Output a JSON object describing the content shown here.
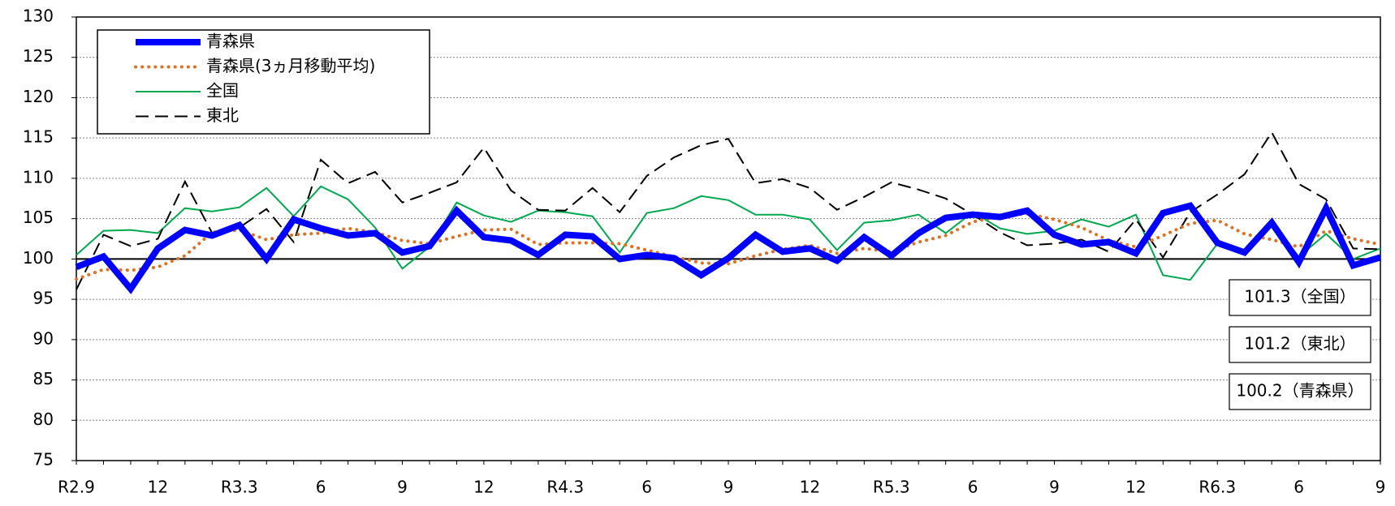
{
  "chart_data": {
    "type": "line",
    "categories": [
      "R2.9",
      null,
      null,
      "12",
      null,
      null,
      "R3.3",
      null,
      null,
      "6",
      null,
      null,
      "9",
      null,
      null,
      "12",
      null,
      null,
      "R4.3",
      null,
      null,
      "6",
      null,
      null,
      "9",
      null,
      null,
      "12",
      null,
      null,
      "R5.3",
      null,
      null,
      "6",
      null,
      null,
      "9",
      null,
      null,
      "12",
      null,
      null,
      "R6.3",
      null,
      null,
      "6",
      null,
      null,
      "9"
    ],
    "series": [
      {
        "name": "青森県",
        "color": "#0000ff",
        "style": "solid",
        "width": 8,
        "values": [
          99,
          100.3,
          96.3,
          101.3,
          103.6,
          102.9,
          104.2,
          100,
          104.9,
          103.8,
          102.9,
          103.2,
          100.8,
          101.6,
          106,
          102.7,
          102.3,
          100.5,
          103,
          102.8,
          100,
          100.5,
          100.1,
          98,
          100.1,
          103,
          100.9,
          101.3,
          99.8,
          102.7,
          100.4,
          103.2,
          105.1,
          105.5,
          105.2,
          106,
          103,
          101.8,
          102.1,
          100.7,
          105.7,
          106.6,
          102,
          100.8,
          104.5,
          99.6,
          106.3,
          99.2,
          100.2
        ]
      },
      {
        "name": "青森県(3ヵ月移動平均)",
        "color": "#e07020",
        "style": "dotted",
        "width": 4,
        "values": [
          97.5,
          98.7,
          98.6,
          99,
          100.4,
          103.3,
          103.6,
          102.4,
          103,
          103.2,
          103.8,
          103.3,
          102.3,
          101.9,
          102.8,
          103.6,
          103.7,
          101.8,
          102,
          102,
          101.9,
          101.1,
          100.3,
          99.5,
          99.4,
          100.4,
          101.2,
          101.7,
          100.7,
          101.3,
          100.9,
          102.1,
          102.9,
          104.6,
          105.3,
          105.6,
          104.9,
          103.9,
          102.3,
          101.5,
          102.9,
          104.4,
          104.8,
          103.1,
          102.4,
          101.5,
          103.5,
          102.5,
          101.8
        ]
      },
      {
        "name": "全国",
        "color": "#00a84f",
        "style": "solid",
        "width": 2,
        "values": [
          100.5,
          103.5,
          103.6,
          103.2,
          106.3,
          105.9,
          106.4,
          108.8,
          105.3,
          109,
          107.4,
          103.9,
          98.8,
          101.5,
          107,
          105.4,
          104.6,
          106,
          105.8,
          105.3,
          100.8,
          105.7,
          106.3,
          107.8,
          107.3,
          105.5,
          105.5,
          104.9,
          101.1,
          104.5,
          104.8,
          105.5,
          103.2,
          105.8,
          103.8,
          103.1,
          103.5,
          104.9,
          104,
          105.5,
          98,
          97.4,
          101.9,
          100.8,
          104.4,
          100.3,
          103.1,
          100,
          101.3
        ]
      },
      {
        "name": "東北",
        "color": "#000000",
        "style": "dashed",
        "width": 2,
        "values": [
          96.2,
          103,
          101.6,
          102.5,
          109.6,
          103.2,
          103.9,
          106.2,
          102.1,
          112.3,
          109.4,
          110.8,
          107,
          108.2,
          109.5,
          113.8,
          108.5,
          106.1,
          106,
          108.8,
          105.8,
          110.3,
          112.6,
          114.1,
          114.9,
          109.4,
          109.9,
          108.8,
          106.1,
          107.7,
          109.5,
          108.6,
          107.5,
          105.5,
          103.3,
          101.7,
          101.9,
          102.4,
          100.9,
          104.9,
          100.2,
          105.8,
          108,
          110.5,
          115.7,
          109.3,
          107.4,
          101.3,
          101.2
        ]
      }
    ],
    "ylim": [
      75,
      130
    ],
    "yticks": [
      75,
      80,
      85,
      90,
      95,
      100,
      105,
      110,
      115,
      120,
      125,
      130
    ],
    "grid": true,
    "baseline": 100,
    "legend": "top-left",
    "annotations": [
      "101.3（全国）",
      "101.2（東北）",
      "100.2（青森県）"
    ]
  }
}
